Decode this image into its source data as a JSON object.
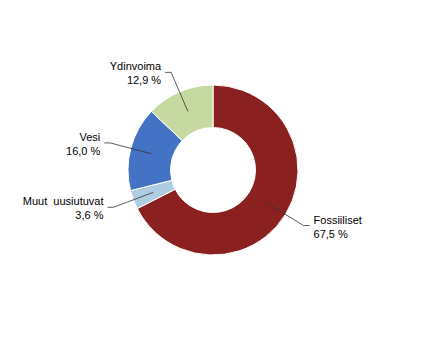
{
  "chart_data": {
    "type": "donut",
    "categories": [
      "Fossiiliset",
      "Muut  uusiutuvat",
      "Vesi",
      "Ydinvoima"
    ],
    "values": [
      67.5,
      3.6,
      16.0,
      12.9
    ],
    "value_labels": [
      "67,5 %",
      "3,6 %",
      "16,0 %",
      "12,9 %"
    ],
    "colors": [
      "#8B2020",
      "#AECDE1",
      "#4472C4",
      "#C5D9A0"
    ],
    "data_labels": true
  }
}
